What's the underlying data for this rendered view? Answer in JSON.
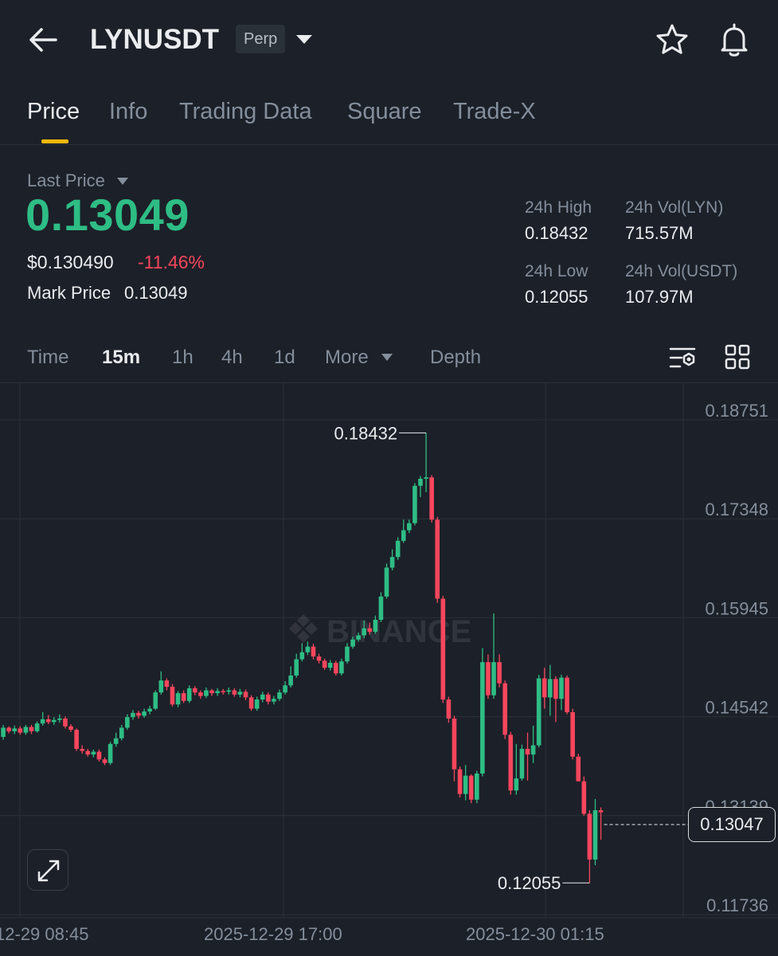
{
  "header": {
    "symbol": "LYNUSDT",
    "contract_badge": "Perp",
    "icons": [
      "back-arrow-icon",
      "dropdown-caret-icon",
      "star-icon",
      "bell-icon"
    ]
  },
  "tabs": [
    {
      "label": "Price",
      "active": true
    },
    {
      "label": "Info",
      "active": false
    },
    {
      "label": "Trading Data",
      "active": false
    },
    {
      "label": "Square",
      "active": false
    },
    {
      "label": "Trade-X",
      "active": false
    }
  ],
  "price": {
    "last_price_label": "Last Price",
    "last_price": "0.13049",
    "usd_price": "$0.130490",
    "change_pct": "-11.46%",
    "mark_price_label": "Mark Price",
    "mark_price": "0.13049"
  },
  "stats": {
    "high_label": "24h High",
    "high_value": "0.18432",
    "low_label": "24h Low",
    "low_value": "0.12055",
    "vol_base_label": "24h Vol(LYN)",
    "vol_base_value": "715.57M",
    "vol_quote_label": "24h Vol(USDT)",
    "vol_quote_value": "107.97M"
  },
  "intervals": {
    "time": "Time",
    "m15": "15m",
    "h1": "1h",
    "h4": "4h",
    "d1": "1d",
    "more": "More",
    "depth": "Depth",
    "active": "15m"
  },
  "colors": {
    "up": "#2ebd85",
    "down": "#f6465d",
    "accent": "#f0b90b",
    "background": "#1c2028"
  },
  "chart_data": {
    "type": "candlestick",
    "watermark": "BINANCE",
    "y_ticks": [
      "0.18751",
      "0.17348",
      "0.15945",
      "0.14542",
      "0.13139",
      "0.11736"
    ],
    "x_ticks": [
      "12-29 08:45",
      "2025-12-29 17:00",
      "2025-12-30 01:15"
    ],
    "high_marker": "0.18432",
    "low_marker": "0.12055",
    "current_price": "0.13047",
    "ylim": [
      0.11736,
      0.18751
    ],
    "candles": [
      [
        0.1398,
        0.1412,
        0.1395,
        0.1415
      ],
      [
        0.1412,
        0.1425,
        0.1408,
        0.1429
      ],
      [
        0.1425,
        0.142,
        0.1417,
        0.1427
      ],
      [
        0.142,
        0.1424,
        0.1416,
        0.1428
      ],
      [
        0.1424,
        0.1418,
        0.1415,
        0.1427
      ],
      [
        0.1418,
        0.1426,
        0.1415,
        0.1429
      ],
      [
        0.1426,
        0.142,
        0.1416,
        0.1429
      ],
      [
        0.142,
        0.1431,
        0.1418,
        0.1434
      ],
      [
        0.1431,
        0.1437,
        0.1428,
        0.1447
      ],
      [
        0.1437,
        0.1433,
        0.143,
        0.1443
      ],
      [
        0.1433,
        0.1436,
        0.1429,
        0.144
      ],
      [
        0.1436,
        0.1438,
        0.1432,
        0.1444
      ],
      [
        0.1438,
        0.1427,
        0.1424,
        0.1441
      ],
      [
        0.1427,
        0.1422,
        0.1419,
        0.143
      ],
      [
        0.1422,
        0.1395,
        0.1392,
        0.1424
      ],
      [
        0.1395,
        0.1392,
        0.1388,
        0.14
      ],
      [
        0.1392,
        0.1387,
        0.1384,
        0.1395
      ],
      [
        0.1387,
        0.1391,
        0.1383,
        0.1394
      ],
      [
        0.1391,
        0.138,
        0.1377,
        0.1394
      ],
      [
        0.138,
        0.1375,
        0.1372,
        0.1383
      ],
      [
        0.1375,
        0.1402,
        0.1372,
        0.1405
      ],
      [
        0.1402,
        0.141,
        0.1398,
        0.1418
      ],
      [
        0.141,
        0.1425,
        0.1407,
        0.1429
      ],
      [
        0.1425,
        0.144,
        0.1422,
        0.1444
      ],
      [
        0.144,
        0.1446,
        0.1436,
        0.145
      ],
      [
        0.1446,
        0.1442,
        0.1438,
        0.1449
      ],
      [
        0.1442,
        0.1448,
        0.1439,
        0.1452
      ],
      [
        0.1448,
        0.1452,
        0.1444,
        0.1456
      ],
      [
        0.1452,
        0.1475,
        0.145,
        0.1478
      ],
      [
        0.1475,
        0.1492,
        0.1472,
        0.1505
      ],
      [
        0.1492,
        0.1483,
        0.1478,
        0.1495
      ],
      [
        0.1483,
        0.1458,
        0.1455,
        0.1487
      ],
      [
        0.1458,
        0.1474,
        0.1454,
        0.1477
      ],
      [
        0.1474,
        0.1463,
        0.146,
        0.1478
      ],
      [
        0.1463,
        0.1481,
        0.146,
        0.1485
      ],
      [
        0.1481,
        0.1475,
        0.1471,
        0.1484
      ],
      [
        0.1475,
        0.147,
        0.1466,
        0.1478
      ],
      [
        0.147,
        0.1478,
        0.1467,
        0.1482
      ],
      [
        0.1478,
        0.1474,
        0.147,
        0.148
      ],
      [
        0.1474,
        0.1477,
        0.147,
        0.1481
      ],
      [
        0.1477,
        0.1476,
        0.1472,
        0.148
      ],
      [
        0.1476,
        0.1478,
        0.1472,
        0.1482
      ],
      [
        0.1478,
        0.1472,
        0.1469,
        0.1481
      ],
      [
        0.1472,
        0.1476,
        0.1468,
        0.148
      ],
      [
        0.1476,
        0.1468,
        0.1464,
        0.1479
      ],
      [
        0.1468,
        0.1452,
        0.1449,
        0.1471
      ],
      [
        0.1452,
        0.1465,
        0.1449,
        0.1469
      ],
      [
        0.1465,
        0.1472,
        0.1461,
        0.1476
      ],
      [
        0.1472,
        0.1462,
        0.1458,
        0.1475
      ],
      [
        0.1462,
        0.1466,
        0.1458,
        0.147
      ],
      [
        0.1466,
        0.1475,
        0.1463,
        0.1479
      ],
      [
        0.1475,
        0.1485,
        0.1472,
        0.1491
      ],
      [
        0.1485,
        0.1499,
        0.1482,
        0.1512
      ],
      [
        0.1499,
        0.1522,
        0.1496,
        0.153
      ],
      [
        0.1522,
        0.1532,
        0.1519,
        0.1545
      ],
      [
        0.1532,
        0.154,
        0.1528,
        0.1547
      ],
      [
        0.154,
        0.1526,
        0.1522,
        0.1544
      ],
      [
        0.1526,
        0.152,
        0.1516,
        0.153
      ],
      [
        0.152,
        0.151,
        0.1507,
        0.1523
      ],
      [
        0.151,
        0.1517,
        0.1506,
        0.1521
      ],
      [
        0.1517,
        0.1502,
        0.1499,
        0.152
      ],
      [
        0.1502,
        0.1519,
        0.1499,
        0.1523
      ],
      [
        0.1519,
        0.154,
        0.1516,
        0.1545
      ],
      [
        0.154,
        0.155,
        0.1537,
        0.1554
      ],
      [
        0.155,
        0.1556,
        0.1547,
        0.156
      ],
      [
        0.1556,
        0.1566,
        0.1552,
        0.1577
      ],
      [
        0.1566,
        0.1561,
        0.1557,
        0.1574
      ],
      [
        0.1561,
        0.1578,
        0.1558,
        0.1584
      ],
      [
        0.1578,
        0.1611,
        0.1575,
        0.1617
      ],
      [
        0.1611,
        0.1652,
        0.1608,
        0.1658
      ],
      [
        0.1652,
        0.1667,
        0.1648,
        0.1678
      ],
      [
        0.1667,
        0.169,
        0.1663,
        0.1695
      ],
      [
        0.169,
        0.1705,
        0.1687,
        0.172
      ],
      [
        0.1705,
        0.1715,
        0.1701,
        0.172
      ],
      [
        0.1715,
        0.1768,
        0.1712,
        0.1772
      ],
      [
        0.1768,
        0.1778,
        0.1752,
        0.1782
      ],
      [
        0.1778,
        0.178,
        0.1759,
        0.1843
      ],
      [
        0.178,
        0.172,
        0.1716,
        0.1783
      ],
      [
        0.172,
        0.1608,
        0.1602,
        0.1724
      ],
      [
        0.1608,
        0.1465,
        0.146,
        0.1612
      ],
      [
        0.1465,
        0.1438,
        0.1432,
        0.1469
      ],
      [
        0.1438,
        0.1366,
        0.1349,
        0.1442
      ],
      [
        0.1366,
        0.1331,
        0.1326,
        0.137
      ],
      [
        0.1331,
        0.1357,
        0.1322,
        0.1372
      ],
      [
        0.1357,
        0.1323,
        0.1318,
        0.1359
      ],
      [
        0.1323,
        0.136,
        0.1318,
        0.1364
      ],
      [
        0.136,
        0.1518,
        0.1356,
        0.1538
      ],
      [
        0.1518,
        0.1471,
        0.1466,
        0.1529
      ],
      [
        0.1471,
        0.1518,
        0.1466,
        0.1587
      ],
      [
        0.1518,
        0.1488,
        0.1482,
        0.1529
      ],
      [
        0.1488,
        0.1415,
        0.1409,
        0.1492
      ],
      [
        0.1415,
        0.1336,
        0.133,
        0.1419
      ],
      [
        0.1336,
        0.1353,
        0.133,
        0.1402
      ],
      [
        0.1353,
        0.1395,
        0.135,
        0.1401
      ],
      [
        0.1395,
        0.1387,
        0.135,
        0.1418
      ],
      [
        0.1387,
        0.14,
        0.1375,
        0.1428
      ],
      [
        0.14,
        0.1495,
        0.1397,
        0.15
      ],
      [
        0.1495,
        0.1468,
        0.1452,
        0.151
      ],
      [
        0.1468,
        0.1494,
        0.1442,
        0.1514
      ],
      [
        0.1494,
        0.1466,
        0.1433,
        0.1498
      ],
      [
        0.1466,
        0.1496,
        0.145,
        0.15
      ],
      [
        0.1496,
        0.1447,
        0.1444,
        0.1499
      ],
      [
        0.1447,
        0.1384,
        0.138,
        0.1452
      ],
      [
        0.1384,
        0.1349,
        0.1349,
        0.1388
      ],
      [
        0.1349,
        0.1303,
        0.13,
        0.1356
      ],
      [
        0.1303,
        0.1238,
        0.1205,
        0.1308
      ],
      [
        0.1238,
        0.1308,
        0.123,
        0.1324
      ],
      [
        0.1308,
        0.1305,
        0.1266,
        0.1312
      ]
    ]
  }
}
